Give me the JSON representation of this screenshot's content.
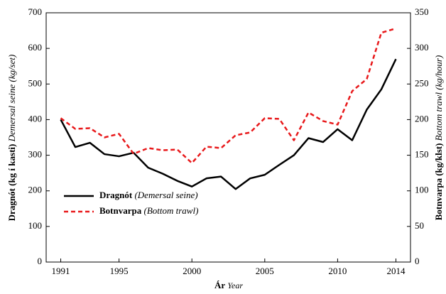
{
  "chart_data": {
    "type": "line",
    "xlabel": {
      "main": "Ár",
      "sub": "Year"
    },
    "ylabel": {
      "main": "Dragnót (kg í kasti)",
      "sub": "Demersal seine (kg/set)"
    },
    "y2label": {
      "main": "Botnvarpa (kg/klst)",
      "sub": "Bottom trawl (kg/hour)"
    },
    "x": [
      1991,
      1992,
      1993,
      1994,
      1995,
      1996,
      1997,
      1998,
      1999,
      2000,
      2001,
      2002,
      2003,
      2004,
      2005,
      2006,
      2007,
      2008,
      2009,
      2010,
      2011,
      2012,
      2013,
      2014
    ],
    "xlim": [
      1990,
      2015
    ],
    "xticks": [
      1991,
      1995,
      2000,
      2005,
      2010,
      2014
    ],
    "ylim": [
      0,
      700
    ],
    "yticks": [
      0,
      100,
      200,
      300,
      400,
      500,
      600,
      700
    ],
    "y2lim": [
      0,
      350
    ],
    "y2ticks": [
      0,
      50,
      100,
      150,
      200,
      250,
      300,
      350
    ],
    "legend": "lower left",
    "series": [
      {
        "name": "Dragnót",
        "name_sub": "(Demersal seine)",
        "color": "#000000",
        "dash": "solid",
        "values": [
          400,
          323,
          335,
          303,
          297,
          307,
          265,
          248,
          228,
          212,
          235,
          240,
          205,
          235,
          245,
          273,
          300,
          348,
          337,
          373,
          342,
          428,
          485,
          570
        ]
      },
      {
        "name": "Botnvarpa",
        "name_sub": "(Bottom trawl)",
        "color": "#e8191b",
        "dash": "dashed",
        "axis": "y2",
        "values": [
          202,
          187,
          188,
          175,
          180,
          152,
          160,
          157,
          158,
          139,
          162,
          160,
          178,
          182,
          202,
          201,
          171,
          210,
          198,
          193,
          240,
          257,
          322,
          328
        ]
      }
    ]
  }
}
